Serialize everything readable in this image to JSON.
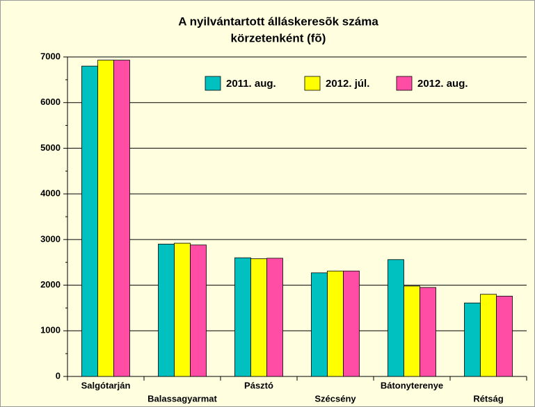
{
  "chart_data": {
    "type": "bar",
    "title": [
      "A nyilvántartott álláskeresõk száma",
      "körzetenként (fõ)"
    ],
    "categories": [
      "Salgótarján",
      "Balassagyarmat",
      "Pásztó",
      "Szécsény",
      "Bátonyterenye",
      "Rétság"
    ],
    "series": [
      {
        "name": "2011. aug.",
        "color": "#00c0c0",
        "values": [
          6800,
          2900,
          2600,
          2270,
          2560,
          1610
        ]
      },
      {
        "name": "2012. júl.",
        "color": "#ffff00",
        "values": [
          6930,
          2920,
          2580,
          2310,
          1980,
          1800
        ]
      },
      {
        "name": "2012. aug.",
        "color": "#ff4da6",
        "values": [
          6930,
          2880,
          2590,
          2310,
          1950,
          1760
        ]
      }
    ],
    "ylim": [
      0,
      7000
    ],
    "yticks": [
      0,
      1000,
      2000,
      3000,
      4000,
      5000,
      6000,
      7000
    ],
    "grid": true,
    "legend": "top-right"
  }
}
